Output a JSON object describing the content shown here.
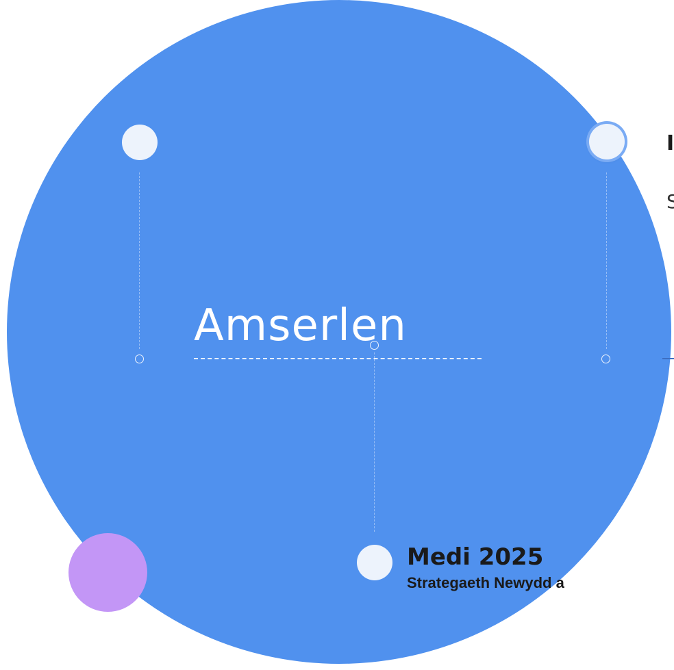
{
  "slide": {
    "title": "Amserlen",
    "colors": {
      "main_circle": "#5091ee",
      "dot": "#edf3fc",
      "accent_circle": "#c396f6"
    }
  },
  "events": [
    {
      "date": "Medi 2025",
      "description": "Strategaeth Newydd a"
    }
  ],
  "clipped": {
    "heading_fragment": "I",
    "sub_fragment": "S"
  }
}
